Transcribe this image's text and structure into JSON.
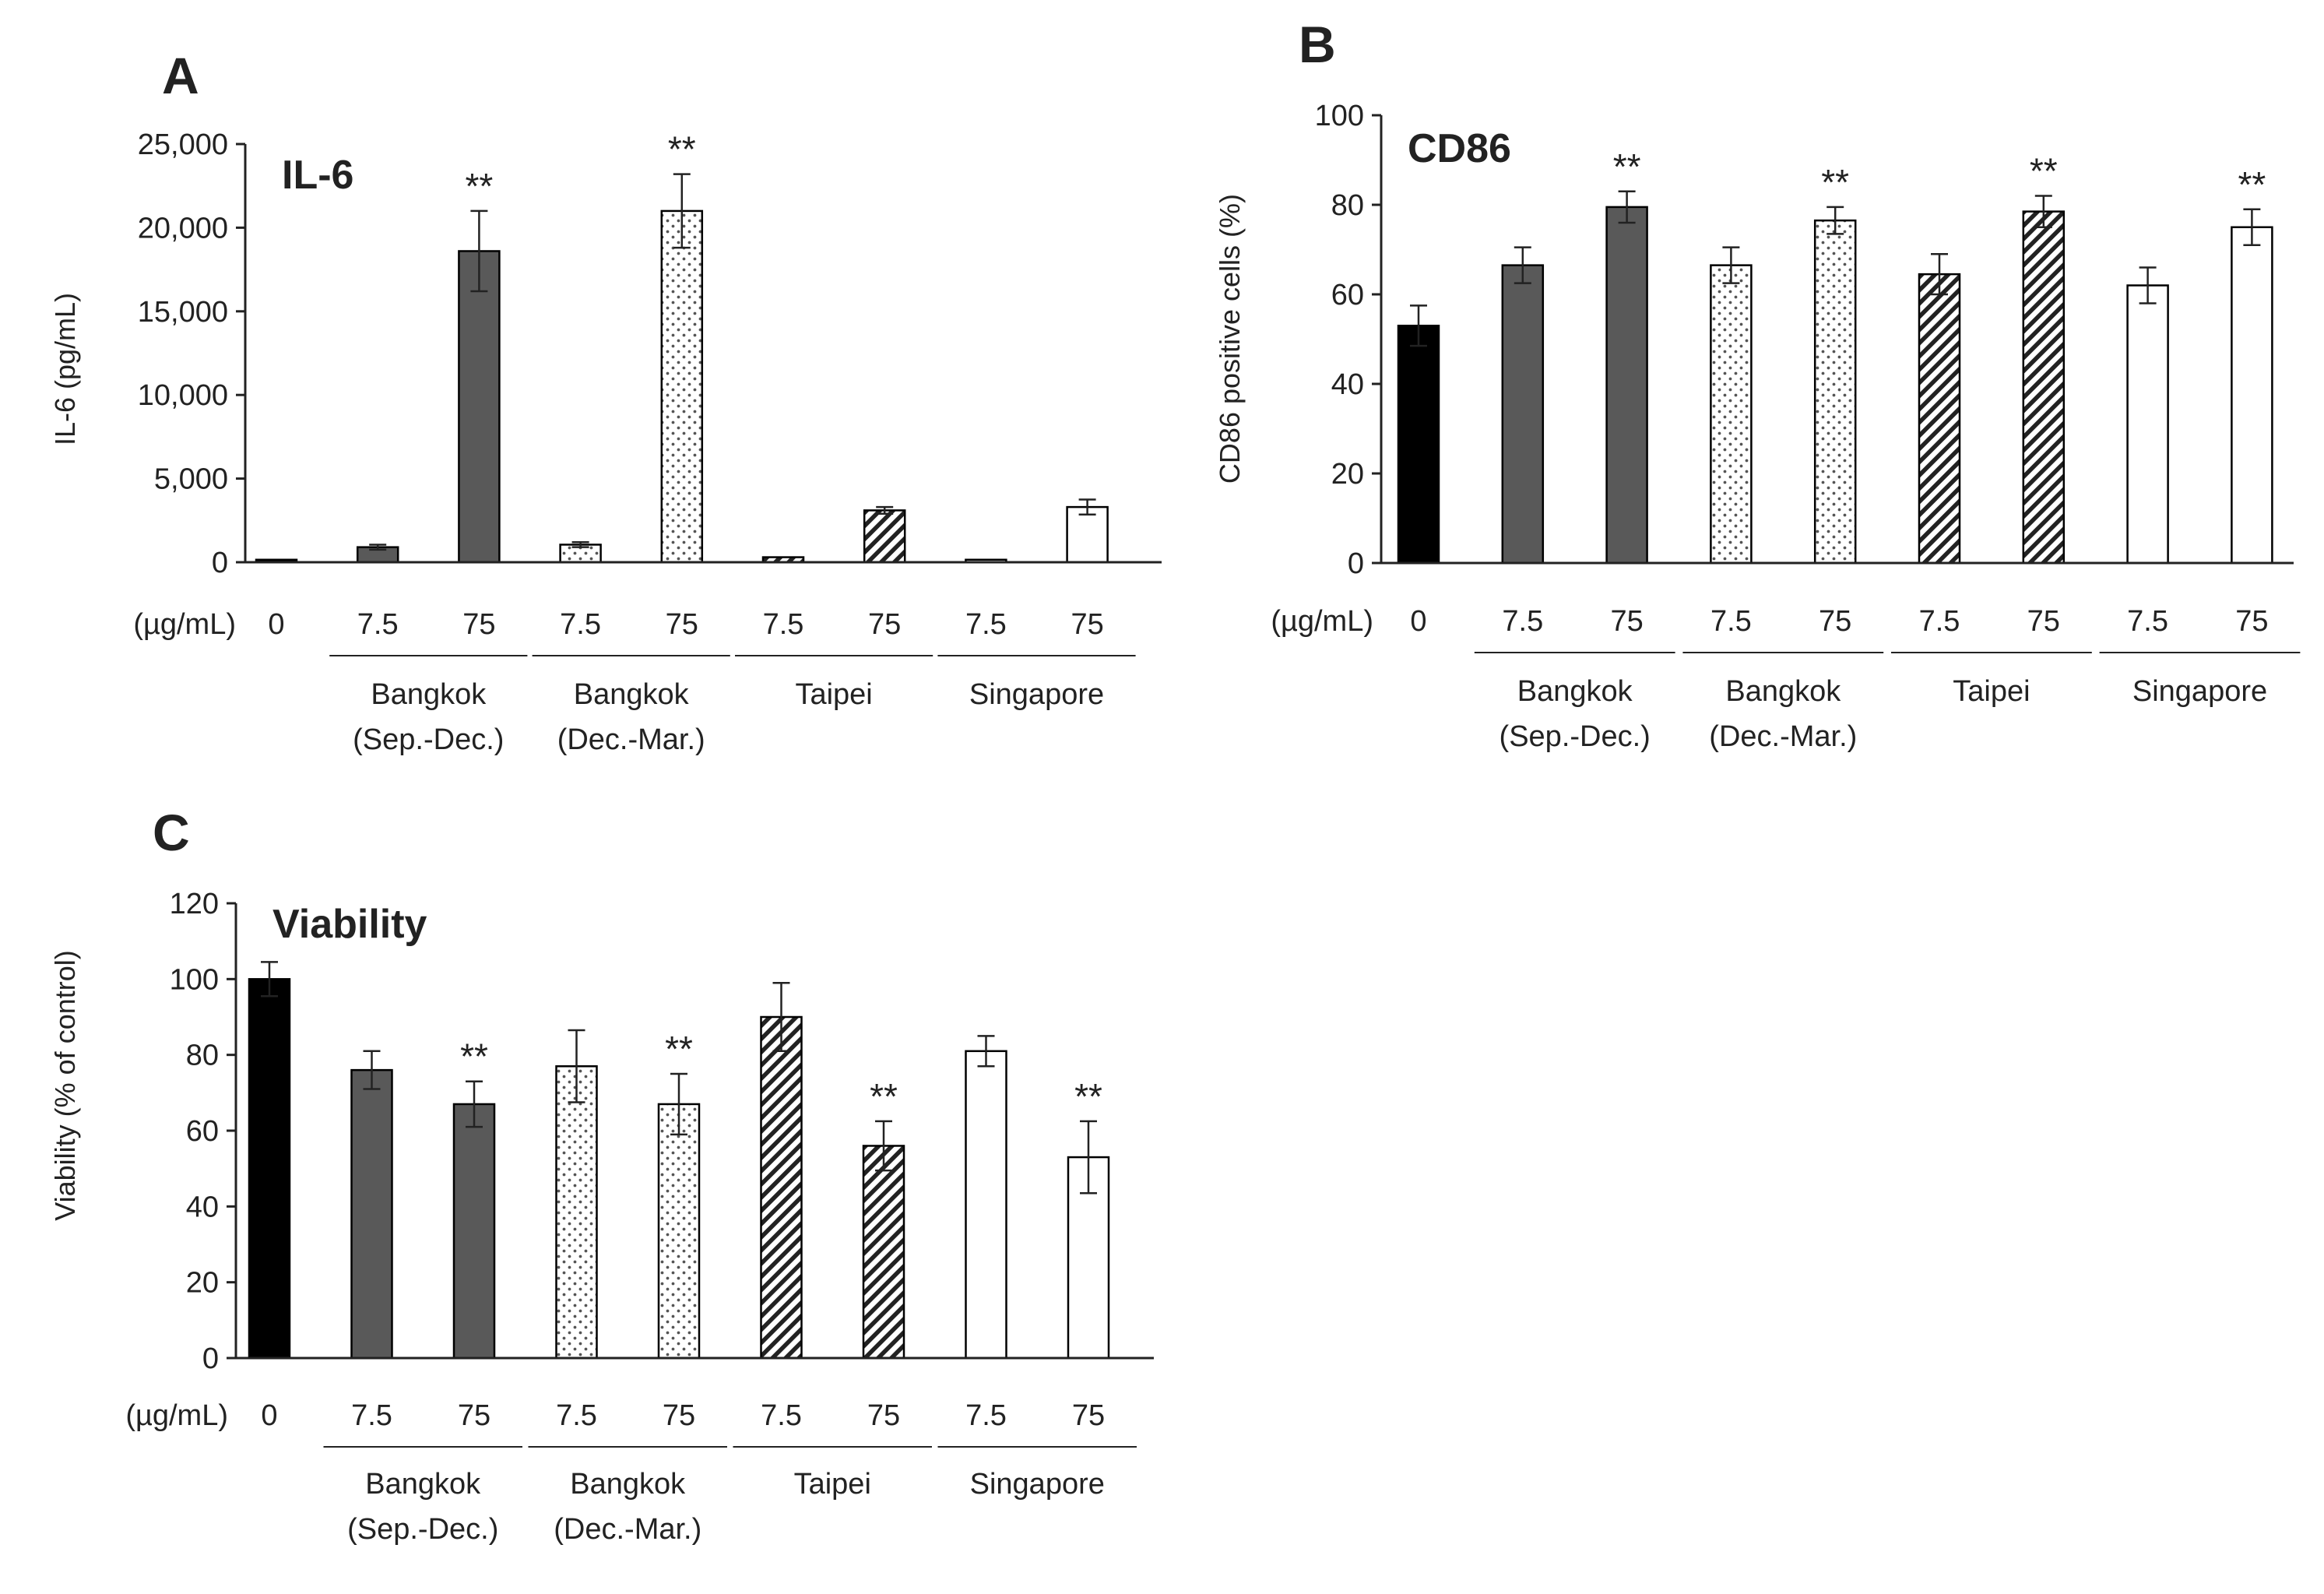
{
  "colors": {
    "axis": "#222222",
    "control_fill": "#000000",
    "bangkok_sep_dec_fill": "#595959",
    "bar_outline": "#000000",
    "open_fill": "#ffffff"
  },
  "chart_data": [
    {
      "panel_letter": "A",
      "type": "bar",
      "title": "IL-6",
      "ylabel": "IL-6 (pg/mL)",
      "ylim": [
        0,
        25000
      ],
      "yticks": [
        0,
        5000,
        10000,
        15000,
        20000,
        25000
      ],
      "ytick_labels": [
        "0",
        "5,000",
        "10,000",
        "15,000",
        "20,000",
        "25,000"
      ],
      "unit_label": "(µg/mL)",
      "categories": [
        "0",
        "7.5",
        "75",
        "7.5",
        "75",
        "7.5",
        "75",
        "7.5",
        "75"
      ],
      "fills": [
        "solid",
        "dark",
        "dark",
        "dots",
        "dots",
        "hatch",
        "hatch",
        "open",
        "open"
      ],
      "values": [
        150,
        900,
        18600,
        1050,
        21000,
        300,
        3100,
        150,
        3300
      ],
      "errors": [
        0,
        150,
        2400,
        150,
        2200,
        0,
        200,
        0,
        450
      ],
      "significance": [
        "",
        "",
        "**",
        "",
        "**",
        "",
        "",
        "",
        ""
      ],
      "groups": [
        {
          "label_lines": [
            "Bangkok",
            "(Sep.-Dec.)"
          ],
          "bars": [
            1,
            2
          ]
        },
        {
          "label_lines": [
            "Bangkok",
            "(Dec.-Mar.)"
          ],
          "bars": [
            3,
            4
          ]
        },
        {
          "label_lines": [
            "Taipei"
          ],
          "bars": [
            5,
            6
          ]
        },
        {
          "label_lines": [
            "Singapore"
          ],
          "bars": [
            7,
            8
          ]
        }
      ]
    },
    {
      "panel_letter": "B",
      "type": "bar",
      "title": "CD86",
      "ylabel": "CD86 positive cells (%)",
      "ylim": [
        0,
        100
      ],
      "yticks": [
        0,
        20,
        40,
        60,
        80,
        100
      ],
      "ytick_labels": [
        "0",
        "20",
        "40",
        "60",
        "80",
        "100"
      ],
      "unit_label": "(µg/mL)",
      "categories": [
        "0",
        "7.5",
        "75",
        "7.5",
        "75",
        "7.5",
        "75",
        "7.5",
        "75"
      ],
      "fills": [
        "solid",
        "dark",
        "dark",
        "dots",
        "dots",
        "hatch",
        "hatch",
        "open",
        "open"
      ],
      "values": [
        53,
        66.5,
        79.5,
        66.5,
        76.5,
        64.5,
        78.5,
        62,
        75
      ],
      "errors": [
        4.5,
        4,
        3.5,
        4,
        3,
        4.5,
        3.5,
        4,
        4
      ],
      "significance": [
        "",
        "",
        "**",
        "",
        "**",
        "",
        "**",
        "",
        "**"
      ],
      "groups": [
        {
          "label_lines": [
            "Bangkok",
            "(Sep.-Dec.)"
          ],
          "bars": [
            1,
            2
          ]
        },
        {
          "label_lines": [
            "Bangkok",
            "(Dec.-Mar.)"
          ],
          "bars": [
            3,
            4
          ]
        },
        {
          "label_lines": [
            "Taipei"
          ],
          "bars": [
            5,
            6
          ]
        },
        {
          "label_lines": [
            "Singapore"
          ],
          "bars": [
            7,
            8
          ]
        }
      ]
    },
    {
      "panel_letter": "C",
      "type": "bar",
      "title": "Viability",
      "ylabel": "Viability (% of control)",
      "ylim": [
        0,
        120
      ],
      "yticks": [
        0,
        20,
        40,
        60,
        80,
        100,
        120
      ],
      "ytick_labels": [
        "0",
        "20",
        "40",
        "60",
        "80",
        "100",
        "120"
      ],
      "unit_label": "(µg/mL)",
      "categories": [
        "0",
        "7.5",
        "75",
        "7.5",
        "75",
        "7.5",
        "75",
        "7.5",
        "75"
      ],
      "fills": [
        "solid",
        "dark",
        "dark",
        "dots",
        "dots",
        "hatch",
        "hatch",
        "open",
        "open"
      ],
      "values": [
        100,
        76,
        67,
        77,
        67,
        90,
        56,
        81,
        53
      ],
      "errors": [
        4.5,
        5,
        6,
        9.5,
        8,
        9,
        6.5,
        4,
        9.5
      ],
      "significance": [
        "",
        "",
        "**",
        "",
        "**",
        "",
        "**",
        "",
        "**"
      ],
      "groups": [
        {
          "label_lines": [
            "Bangkok",
            "(Sep.-Dec.)"
          ],
          "bars": [
            1,
            2
          ]
        },
        {
          "label_lines": [
            "Bangkok",
            "(Dec.-Mar.)"
          ],
          "bars": [
            3,
            4
          ]
        },
        {
          "label_lines": [
            "Taipei"
          ],
          "bars": [
            5,
            6
          ]
        },
        {
          "label_lines": [
            "Singapore"
          ],
          "bars": [
            7,
            8
          ]
        }
      ]
    }
  ]
}
